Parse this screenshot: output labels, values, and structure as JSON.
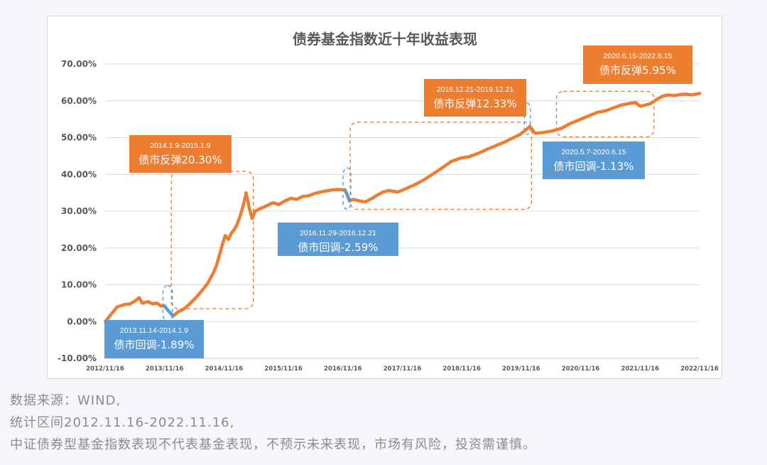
{
  "chart_data": {
    "type": "line",
    "title": "债券基金指数近十年收益表现",
    "xlabel": "",
    "ylabel": "",
    "ylim": [
      -10,
      70
    ],
    "y_ticks": [
      "-10.00%",
      "0.00%",
      "10.00%",
      "20.00%",
      "30.00%",
      "40.00%",
      "50.00%",
      "60.00%",
      "70.00%"
    ],
    "x_ticks": [
      "2012/11/16",
      "2013/11/16",
      "2014/11/16",
      "2015/11/16",
      "2016/11/16",
      "2017/11/16",
      "2018/11/16",
      "2019/11/16",
      "2020/11/16",
      "2021/11/16",
      "2022/11/16"
    ],
    "grid": true,
    "series": [
      {
        "color": "#ed7d31",
        "points": [
          [
            2012.88,
            0.0
          ],
          [
            2012.98,
            2.0
          ],
          [
            2013.08,
            4.0
          ],
          [
            2013.2,
            4.6
          ],
          [
            2013.3,
            4.8
          ],
          [
            2013.38,
            5.6
          ],
          [
            2013.45,
            6.5
          ],
          [
            2013.5,
            5.0
          ],
          [
            2013.6,
            5.4
          ],
          [
            2013.68,
            4.8
          ],
          [
            2013.75,
            5.0
          ],
          [
            2013.82,
            4.2
          ],
          [
            2013.87,
            4.3
          ],
          [
            2013.95,
            2.8
          ],
          [
            2014.02,
            1.5
          ],
          [
            2014.1,
            2.6
          ],
          [
            2014.2,
            3.4
          ],
          [
            2014.3,
            4.8
          ],
          [
            2014.4,
            6.4
          ],
          [
            2014.5,
            8.3
          ],
          [
            2014.6,
            10.3
          ],
          [
            2014.7,
            13.3
          ],
          [
            2014.75,
            15.2
          ],
          [
            2014.85,
            21.0
          ],
          [
            2014.9,
            23.4
          ],
          [
            2014.95,
            22.3
          ],
          [
            2015.0,
            24.0
          ],
          [
            2015.05,
            25.0
          ],
          [
            2015.1,
            26.5
          ],
          [
            2015.15,
            28.8
          ],
          [
            2015.2,
            31.5
          ],
          [
            2015.25,
            35.0
          ],
          [
            2015.3,
            31.0
          ],
          [
            2015.35,
            28.0
          ],
          [
            2015.4,
            30.0
          ],
          [
            2015.5,
            30.8
          ],
          [
            2015.6,
            31.5
          ],
          [
            2015.7,
            32.3
          ],
          [
            2015.8,
            31.8
          ],
          [
            2015.9,
            32.8
          ],
          [
            2016.0,
            33.5
          ],
          [
            2016.1,
            33.2
          ],
          [
            2016.2,
            34.0
          ],
          [
            2016.3,
            34.2
          ],
          [
            2016.4,
            34.8
          ],
          [
            2016.5,
            35.2
          ],
          [
            2016.6,
            35.5
          ],
          [
            2016.7,
            35.8
          ],
          [
            2016.8,
            35.9
          ],
          [
            2016.91,
            35.8
          ],
          [
            2016.95,
            34.5
          ],
          [
            2016.97,
            33.5
          ],
          [
            2016.99,
            32.8
          ],
          [
            2017.05,
            33.2
          ],
          [
            2017.15,
            32.8
          ],
          [
            2017.25,
            32.5
          ],
          [
            2017.35,
            33.3
          ],
          [
            2017.45,
            34.3
          ],
          [
            2017.55,
            35.2
          ],
          [
            2017.65,
            35.6
          ],
          [
            2017.8,
            35.2
          ],
          [
            2017.95,
            36.2
          ],
          [
            2018.1,
            37.3
          ],
          [
            2018.25,
            38.6
          ],
          [
            2018.4,
            40.2
          ],
          [
            2018.55,
            41.8
          ],
          [
            2018.7,
            43.5
          ],
          [
            2018.85,
            44.4
          ],
          [
            2019.0,
            44.8
          ],
          [
            2019.15,
            45.7
          ],
          [
            2019.3,
            46.8
          ],
          [
            2019.45,
            47.8
          ],
          [
            2019.6,
            48.8
          ],
          [
            2019.75,
            50.0
          ],
          [
            2019.85,
            50.8
          ],
          [
            2019.95,
            52.0
          ],
          [
            2020.02,
            53.0
          ],
          [
            2020.06,
            52.3
          ],
          [
            2020.1,
            51.3
          ],
          [
            2020.15,
            51.2
          ],
          [
            2020.25,
            51.4
          ],
          [
            2020.4,
            51.8
          ],
          [
            2020.55,
            52.5
          ],
          [
            2020.7,
            53.8
          ],
          [
            2020.85,
            54.8
          ],
          [
            2021.0,
            55.8
          ],
          [
            2021.15,
            56.8
          ],
          [
            2021.3,
            57.3
          ],
          [
            2021.45,
            58.2
          ],
          [
            2021.55,
            58.8
          ],
          [
            2021.7,
            59.3
          ],
          [
            2021.8,
            59.5
          ],
          [
            2021.88,
            58.5
          ],
          [
            2021.95,
            58.8
          ],
          [
            2022.05,
            59.2
          ],
          [
            2022.15,
            60.3
          ],
          [
            2022.25,
            61.2
          ],
          [
            2022.35,
            61.6
          ],
          [
            2022.45,
            61.4
          ],
          [
            2022.55,
            61.7
          ],
          [
            2022.65,
            61.8
          ],
          [
            2022.75,
            61.6
          ],
          [
            2022.88,
            62.0
          ]
        ]
      }
    ],
    "highlight_color": "#5b9bd5",
    "highlight_segments": [
      [
        2013.87,
        2014.02
      ],
      [
        2016.91,
        2016.99
      ],
      [
        2020.35,
        2020.46
      ]
    ],
    "annotations": [
      {
        "tone": "up",
        "range": "2014.1.9-2015.1.9",
        "text": "债市反弹20.30%"
      },
      {
        "tone": "down",
        "range": "2013.11.14-2014.1.9",
        "text": "债市回调-1.89%"
      },
      {
        "tone": "up",
        "range": "2016.12.21-2019.12.21",
        "text": "债市反弹12.33%"
      },
      {
        "tone": "down",
        "range": "2016.11.29-2016.12.21",
        "text": "债市回调-2.59%"
      },
      {
        "tone": "up",
        "range": "2020.6.15-2022.6.15",
        "text": "债市反弹5.95%"
      },
      {
        "tone": "down",
        "range": "2020.5.7-2020.6.15",
        "text": "债市回调-1.13%"
      }
    ]
  },
  "notes": [
    "数据来源：WIND,",
    "统计区间2012.11.16-2022.11.16,",
    "中证债券型基金指数表现不代表基金表现，不预示未来表现，市场有风险，投资需谨慎。"
  ],
  "colors": {
    "up_box": "#ed7d31",
    "down_box": "#5b9bd5",
    "dashed_up": "#ed7d31",
    "dashed_down": "#5b9bd5",
    "grid": "#d9d9d9",
    "text": "#595959"
  }
}
